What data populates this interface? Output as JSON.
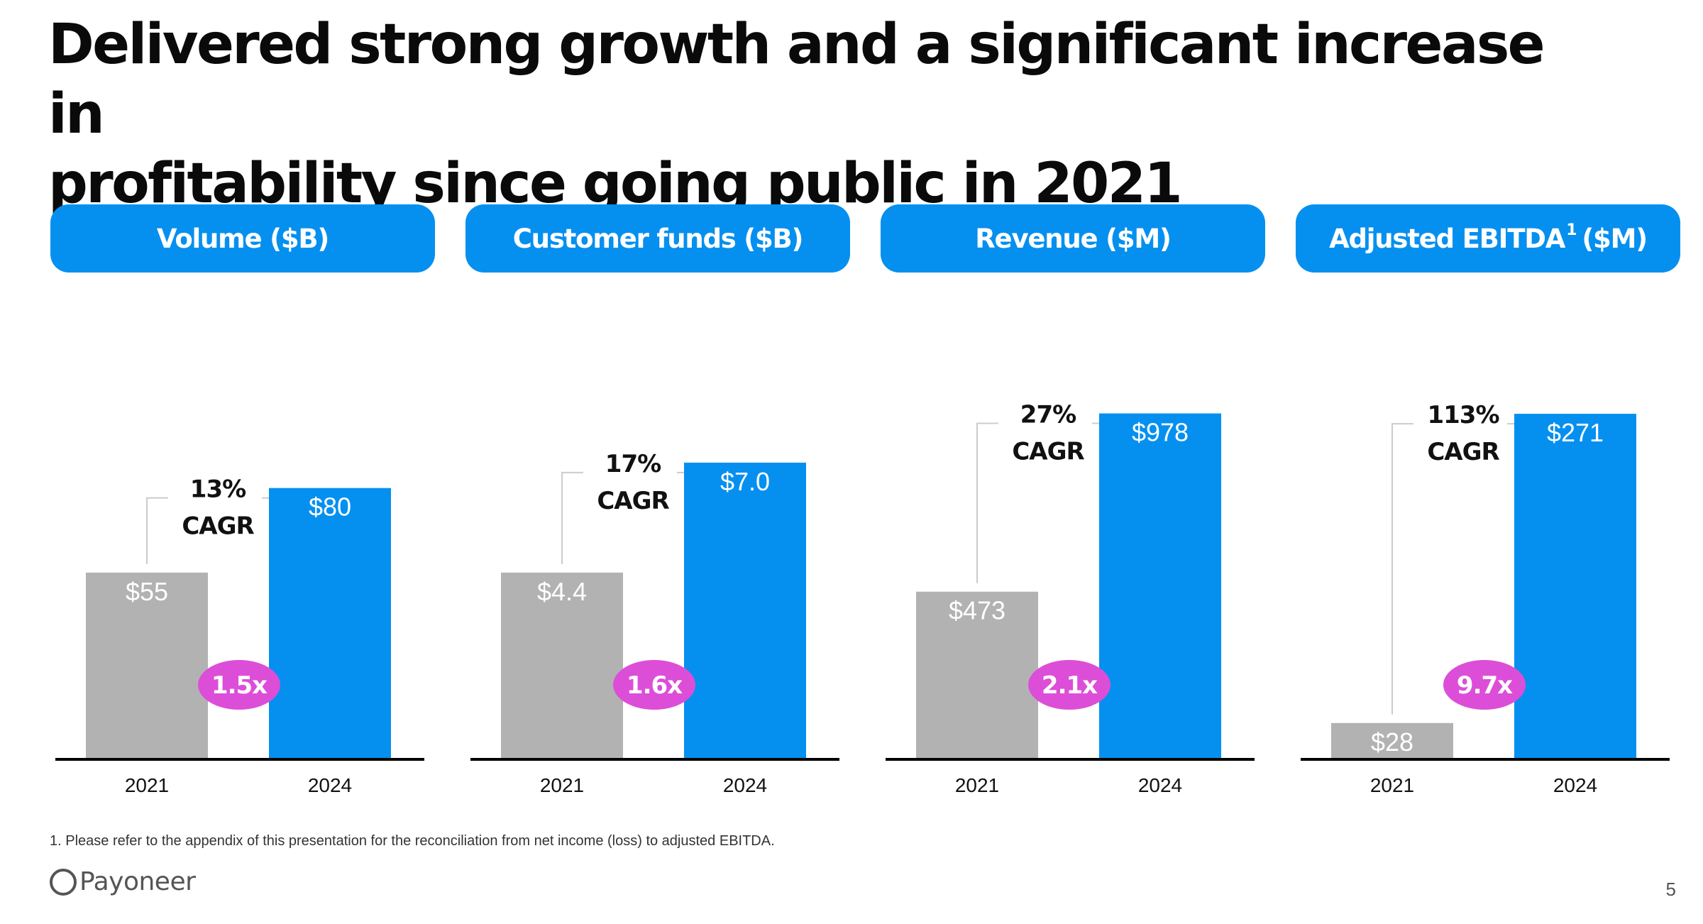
{
  "headline": {
    "line1": "Delivered strong growth and a significant increase in",
    "line2": "profitability since going public in 2021"
  },
  "colors": {
    "accent_blue": "#0590f0",
    "bar_2021": "#b2b2b2",
    "bar_2024": "#0590f0",
    "multiplier_bubble": "#dc4ed8",
    "connector": "#cccccc",
    "baseline": "#000000"
  },
  "chart_data": [
    {
      "type": "bar",
      "title": "Volume ($B)",
      "title_main": "Volume ($B)",
      "title_sup": "",
      "title_suffix": "",
      "categories": [
        "2021",
        "2024"
      ],
      "values": [
        55,
        80
      ],
      "value_labels": [
        "$55",
        "$80"
      ],
      "cagr_pct": "13%",
      "cagr_label": "CAGR",
      "multiplier": "1.5x",
      "ylim": [
        0,
        120
      ]
    },
    {
      "type": "bar",
      "title": "Customer funds ($B)",
      "title_main": "Customer funds ($B)",
      "title_sup": "",
      "title_suffix": "",
      "categories": [
        "2021",
        "2024"
      ],
      "values": [
        4.4,
        7.0
      ],
      "value_labels": [
        "$4.4",
        "$7.0"
      ],
      "cagr_pct": "17%",
      "cagr_label": "CAGR",
      "multiplier": "1.6x",
      "ylim": [
        0,
        9.6
      ]
    },
    {
      "type": "bar",
      "title": "Revenue ($M)",
      "title_main": "Revenue ($M)",
      "title_sup": "",
      "title_suffix": "",
      "categories": [
        "2021",
        "2024"
      ],
      "values": [
        473,
        978
      ],
      "value_labels": [
        "$473",
        "$978"
      ],
      "cagr_pct": "27%",
      "cagr_label": "CAGR",
      "multiplier": "2.1x",
      "ylim": [
        0,
        1150
      ]
    },
    {
      "type": "bar",
      "title": "Adjusted EBITDA1 ($M)",
      "title_main": "Adjusted EBITDA",
      "title_sup": "1",
      "title_suffix": "($M)",
      "categories": [
        "2021",
        "2024"
      ],
      "values": [
        28,
        271
      ],
      "value_labels": [
        "$28",
        "$271"
      ],
      "cagr_pct": "113%",
      "cagr_label": "CAGR",
      "multiplier": "9.7x",
      "ylim": [
        0,
        319
      ]
    }
  ],
  "footnote": "1. Please refer to the appendix of this presentation for the reconciliation from net income (loss) to adjusted EBITDA.",
  "logo": {
    "text": "Payoneer"
  },
  "page_number": "5"
}
